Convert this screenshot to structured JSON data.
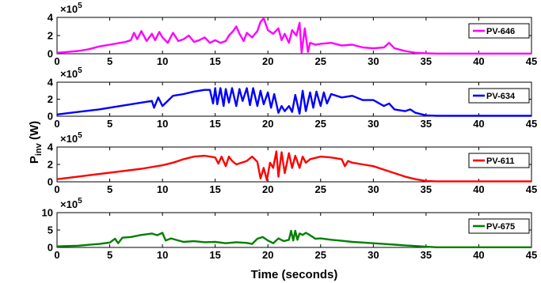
{
  "chart_data": {
    "type": "line",
    "xlabel": "Time (seconds)",
    "ylabel": "P",
    "ylabel_subscript": "inv",
    "ylabel_unit": " (W)",
    "xlim": [
      0,
      45
    ],
    "x_ticks": [
      "0",
      "5",
      "10",
      "15",
      "20",
      "25",
      "30",
      "35",
      "40",
      "45"
    ],
    "exponent_base": "×10",
    "exponent_power": "5",
    "grid": false,
    "legend_position": "right",
    "panels": [
      {
        "legend": "PV-646",
        "color": "#ff00ff",
        "ylim": [
          0,
          4
        ],
        "y_ticks": [
          "0",
          "2",
          "4"
        ],
        "x": [
          0,
          1,
          2,
          3,
          4,
          5,
          6,
          6.5,
          7,
          7.3,
          7.6,
          8,
          8.5,
          9,
          9.3,
          9.7,
          10,
          10.5,
          11,
          11.5,
          12,
          12.5,
          13,
          13.5,
          14,
          14.5,
          15,
          15.5,
          16,
          16.3,
          16.7,
          17,
          17.3,
          17.7,
          18,
          18.5,
          19,
          19.3,
          19.6,
          20,
          20.5,
          21,
          21.3,
          21.6,
          22,
          22.3,
          22.7,
          23,
          23.2,
          23.5,
          23.8,
          24,
          24.5,
          25,
          26,
          27,
          28,
          29,
          30,
          31,
          31.5,
          32,
          33,
          34,
          35,
          36,
          45
        ],
        "y": [
          0.1,
          0.2,
          0.3,
          0.5,
          0.8,
          1.0,
          1.2,
          1.3,
          1.5,
          2.3,
          1.6,
          2.5,
          1.4,
          2.2,
          1.5,
          2.4,
          1.8,
          1.2,
          2.3,
          1.4,
          1.6,
          2.0,
          1.3,
          1.5,
          1.8,
          1.2,
          1.5,
          1.2,
          1.4,
          2.0,
          2.5,
          3.0,
          2.2,
          1.4,
          2.3,
          1.8,
          2.5,
          3.5,
          3.9,
          2.6,
          2.2,
          2.8,
          1.5,
          2.2,
          1.2,
          2.6,
          2.0,
          3.4,
          0.1,
          2.8,
          0.2,
          1.2,
          1.0,
          1.1,
          1.2,
          0.9,
          1.0,
          0.7,
          0.6,
          0.7,
          1.2,
          0.6,
          0.3,
          0.1,
          0.05,
          0.02,
          0.02
        ]
      },
      {
        "legend": "PV-634",
        "color": "#0000ff",
        "ylim": [
          0,
          4
        ],
        "y_ticks": [
          "0",
          "2",
          "4"
        ],
        "x": [
          0,
          2,
          4,
          6,
          8,
          9,
          9.2,
          9.6,
          10,
          11,
          12,
          13,
          14,
          14.5,
          14.8,
          15,
          15.2,
          15.5,
          15.8,
          16,
          16.3,
          16.6,
          17,
          17.3,
          17.6,
          18,
          18.3,
          18.6,
          19,
          19.3,
          19.6,
          20,
          20.3,
          20.6,
          21,
          21.3,
          21.6,
          22,
          22.3,
          22.6,
          23,
          23.3,
          23.6,
          24,
          24.3,
          24.6,
          25,
          25.3,
          25.6,
          26,
          27,
          28,
          29,
          30,
          31,
          31.5,
          32,
          33,
          33.5,
          34,
          35,
          36,
          45
        ],
        "y": [
          0.2,
          0.5,
          0.8,
          1.2,
          1.6,
          1.8,
          1.0,
          2.2,
          1.2,
          2.4,
          2.6,
          2.9,
          3.1,
          3.1,
          1.5,
          3.3,
          1.4,
          3.3,
          1.2,
          3.2,
          1.6,
          3.3,
          1.2,
          3.2,
          1.8,
          3.3,
          1.3,
          3.3,
          1.2,
          3.0,
          1.4,
          2.8,
          1.0,
          2.6,
          0.4,
          1.2,
          0.6,
          1.2,
          0.5,
          2.5,
          0.3,
          3.0,
          0.6,
          2.8,
          1.0,
          2.9,
          1.2,
          2.8,
          1.5,
          2.6,
          2.2,
          2.4,
          1.9,
          1.9,
          1.2,
          1.5,
          0.8,
          0.6,
          0.8,
          0.4,
          0.1,
          0.05,
          0.05
        ]
      },
      {
        "legend": "PV-611",
        "color": "#ff0000",
        "ylim": [
          0,
          4
        ],
        "y_ticks": [
          "0",
          "2",
          "4"
        ],
        "x": [
          0,
          2,
          4,
          6,
          8,
          10,
          11,
          12,
          13,
          14,
          15,
          15.3,
          15.6,
          16,
          16.3,
          16.6,
          17,
          18,
          18.5,
          19,
          19.3,
          19.6,
          19.9,
          20.2,
          20.5,
          20.8,
          21,
          21.3,
          21.6,
          22,
          22.3,
          22.6,
          23,
          23.3,
          23.6,
          24,
          25,
          26,
          27,
          27.3,
          27.6,
          28,
          29,
          30,
          31,
          32,
          33,
          34,
          35,
          36,
          45
        ],
        "y": [
          0.3,
          0.6,
          0.9,
          1.2,
          1.5,
          1.9,
          2.2,
          2.6,
          2.9,
          3.0,
          2.8,
          2.1,
          2.9,
          1.8,
          2.9,
          2.4,
          2.0,
          2.4,
          2.9,
          2.3,
          0.4,
          1.6,
          0.2,
          2.2,
          1.6,
          3.5,
          0.6,
          3.4,
          1.0,
          3.3,
          1.6,
          3.0,
          1.6,
          2.9,
          2.2,
          2.6,
          2.9,
          2.8,
          2.6,
          1.8,
          2.4,
          2.2,
          2.0,
          1.8,
          1.4,
          1.0,
          0.6,
          0.3,
          0.1,
          0.05,
          0.05
        ]
      },
      {
        "legend": "PV-675",
        "color": "#008000",
        "ylim": [
          0,
          10
        ],
        "y_ticks": [
          "0",
          "5",
          "10"
        ],
        "x": [
          0,
          2,
          4,
          5,
          5.5,
          5.8,
          6.2,
          7,
          8,
          9,
          9.5,
          10,
          10.3,
          10.8,
          12,
          13,
          14,
          15,
          16,
          17,
          18,
          18.5,
          19,
          19.5,
          20,
          20.5,
          21,
          21.5,
          22,
          22.2,
          22.4,
          22.6,
          22.8,
          23,
          23.3,
          23.6,
          24,
          24.5,
          25,
          26,
          27,
          28,
          29,
          30,
          31,
          32,
          33,
          34,
          35,
          36,
          45
        ],
        "y": [
          0.3,
          0.5,
          1.0,
          1.4,
          2.5,
          1.2,
          2.8,
          3.0,
          3.6,
          4.0,
          3.5,
          4.2,
          2.0,
          2.6,
          1.6,
          1.8,
          1.5,
          1.6,
          1.2,
          1.5,
          1.3,
          1.0,
          2.5,
          3.0,
          2.0,
          1.2,
          2.6,
          1.8,
          2.2,
          4.8,
          2.0,
          4.8,
          2.2,
          4.0,
          3.6,
          4.2,
          3.5,
          2.5,
          2.6,
          2.2,
          1.9,
          1.6,
          1.4,
          1.2,
          1.0,
          0.8,
          0.6,
          0.4,
          0.2,
          0.05,
          0.05
        ]
      }
    ]
  }
}
